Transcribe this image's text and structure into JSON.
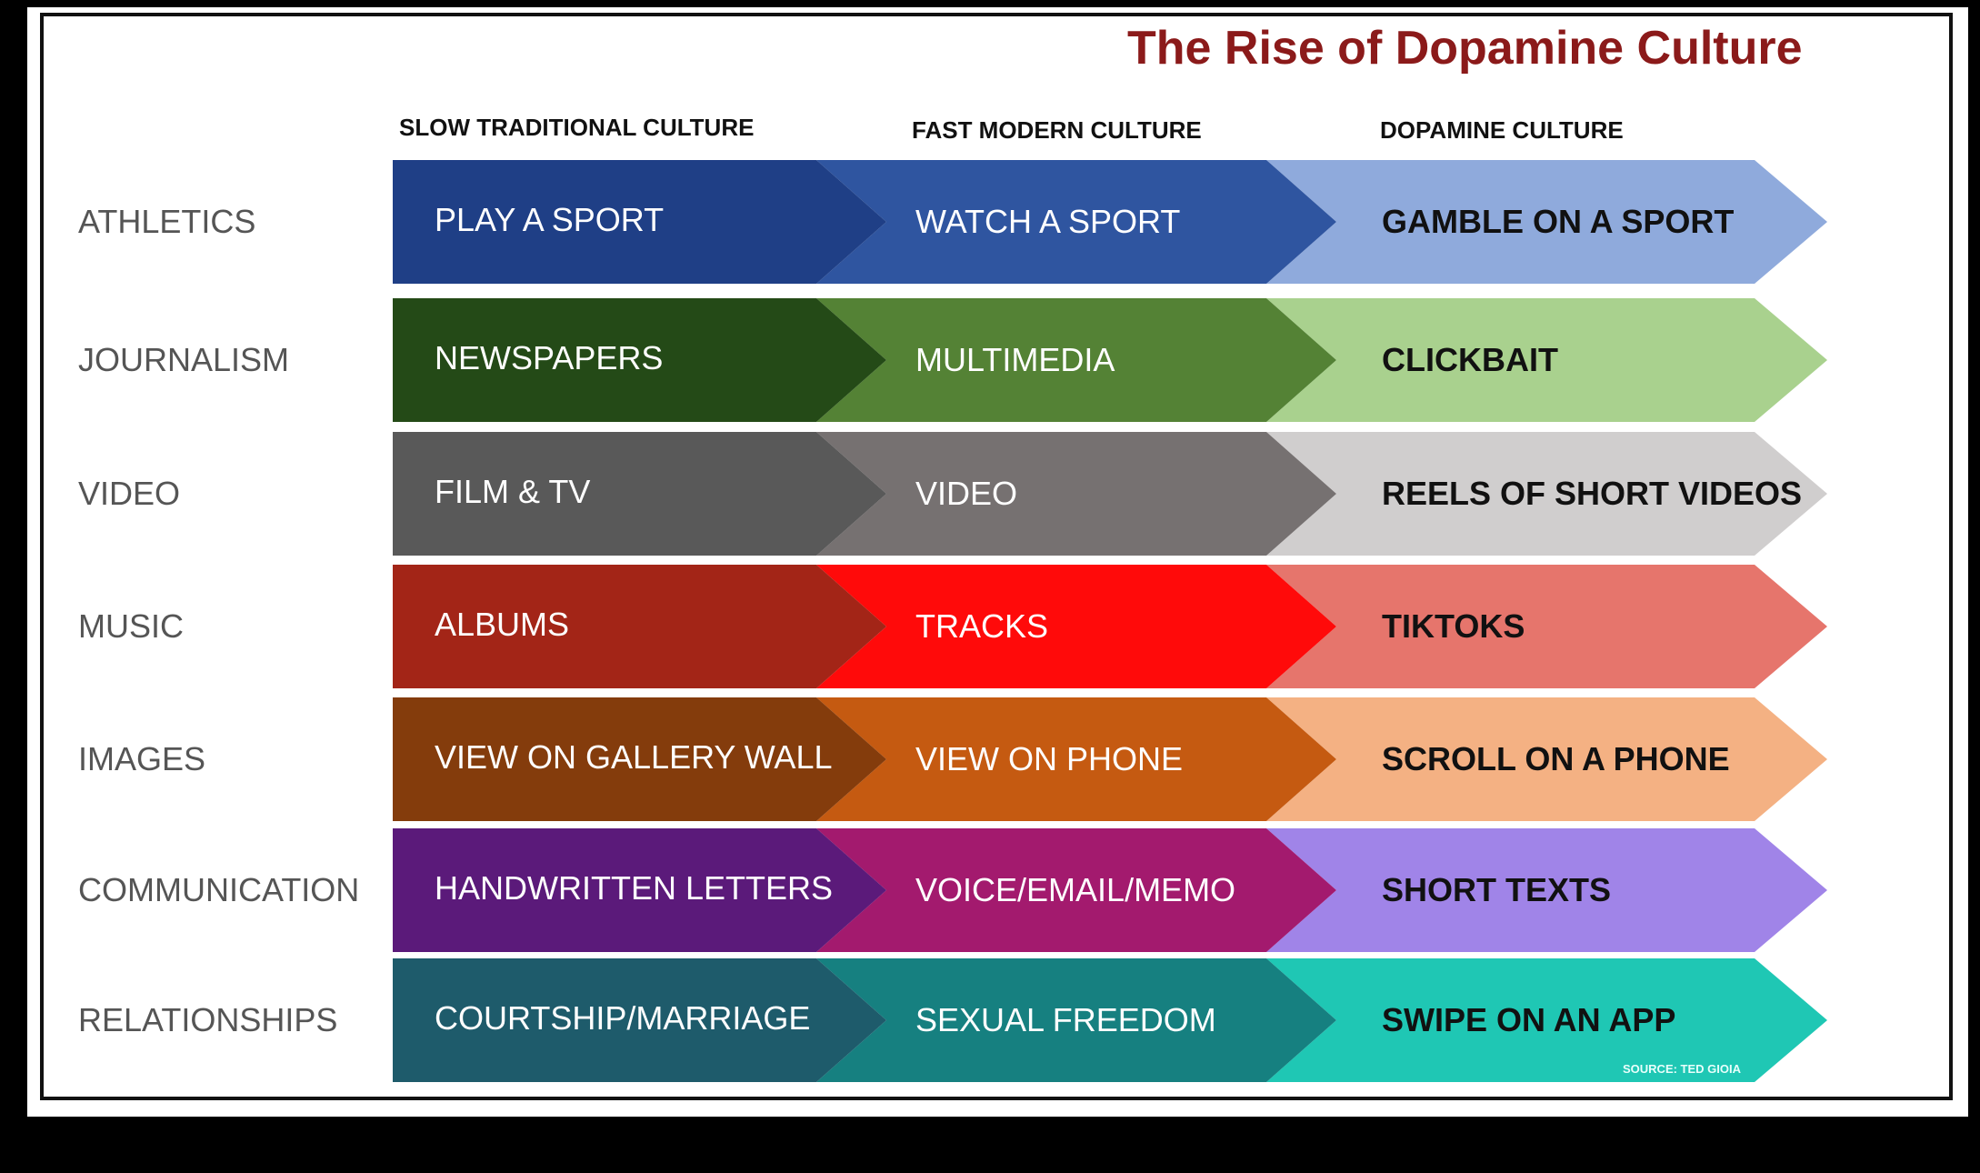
{
  "title": "The Rise of Dopamine Culture",
  "columns": [
    "SLOW TRADITIONAL CULTURE",
    "FAST MODERN CULTURE",
    "DOPAMINE CULTURE"
  ],
  "rows": [
    {
      "label": "ATHLETICS",
      "cells": [
        "PLAY A SPORT",
        "WATCH A SPORT",
        "GAMBLE ON A SPORT"
      ],
      "colors": [
        "#1F3F86",
        "#2F55A0",
        "#8FAADC"
      ]
    },
    {
      "label": "JOURNALISM",
      "cells": [
        "NEWSPAPERS",
        "MULTIMEDIA",
        "CLICKBAIT"
      ],
      "colors": [
        "#244A17",
        "#548235",
        "#A9D18E"
      ]
    },
    {
      "label": "VIDEO",
      "cells": [
        "FILM &  TV",
        "VIDEO",
        "REELS OF SHORT VIDEOS"
      ],
      "colors": [
        "#595959",
        "#767171",
        "#D0CECE"
      ]
    },
    {
      "label": "MUSIC",
      "cells": [
        "ALBUMS",
        "TRACKS",
        "TIKTOKS"
      ],
      "colors": [
        "#A32517",
        "#FF0A0A",
        "#E6756C"
      ]
    },
    {
      "label": "IMAGES",
      "cells": [
        "VIEW ON GALLERY WALL",
        "VIEW ON PHONE",
        "SCROLL ON A PHONE"
      ],
      "colors": [
        "#843C0C",
        "#C55A11",
        "#F4B183"
      ]
    },
    {
      "label": "COMMUNICATION",
      "cells": [
        "HANDWRITTEN LETTERS",
        "VOICE/EMAIL/MEMO",
        "SHORT TEXTS"
      ],
      "colors": [
        "#5B1A7A",
        "#A31A6E",
        "#A084E8"
      ]
    },
    {
      "label": "RELATIONSHIPS",
      "cells": [
        "COURTSHIP/MARRIAGE",
        "SEXUAL FREEDOM",
        "SWIPE ON AN APP"
      ],
      "colors": [
        "#1E5B6B",
        "#168080",
        "#1FC7B4"
      ]
    }
  ],
  "source": "SOURCE: TED GIOIA",
  "colors": {
    "title": "#8B1A1A",
    "row_label": "#555555"
  }
}
